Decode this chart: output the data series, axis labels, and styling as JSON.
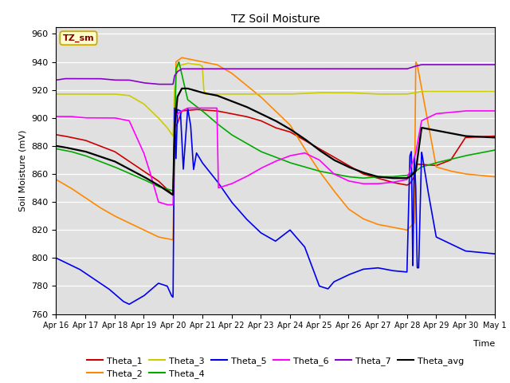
{
  "title": "TZ Soil Moisture",
  "xlabel": "Time",
  "ylabel": "Soil Moisture (mV)",
  "ylim": [
    760,
    965
  ],
  "yticks": [
    760,
    780,
    800,
    820,
    840,
    860,
    880,
    900,
    920,
    940,
    960
  ],
  "xtick_labels": [
    "Apr 16",
    "Apr 17",
    "Apr 18",
    "Apr 19",
    "Apr 20",
    "Apr 21",
    "Apr 22",
    "Apr 23",
    "Apr 24",
    "Apr 25",
    "Apr 26",
    "Apr 27",
    "Apr 28",
    "Apr 29",
    "Apr 30",
    "May 1"
  ],
  "bg_color": "#e0e0e0",
  "legend_box_color": "#ffffcc",
  "legend_box_edge": "#ccaa00",
  "series_colors": {
    "Theta_1": "#cc0000",
    "Theta_2": "#ff8800",
    "Theta_3": "#cccc00",
    "Theta_4": "#00aa00",
    "Theta_5": "#0000ee",
    "Theta_6": "#ff00ff",
    "Theta_7": "#8800cc",
    "Theta_avg": "#000000"
  },
  "label_box": "TZ_sm"
}
